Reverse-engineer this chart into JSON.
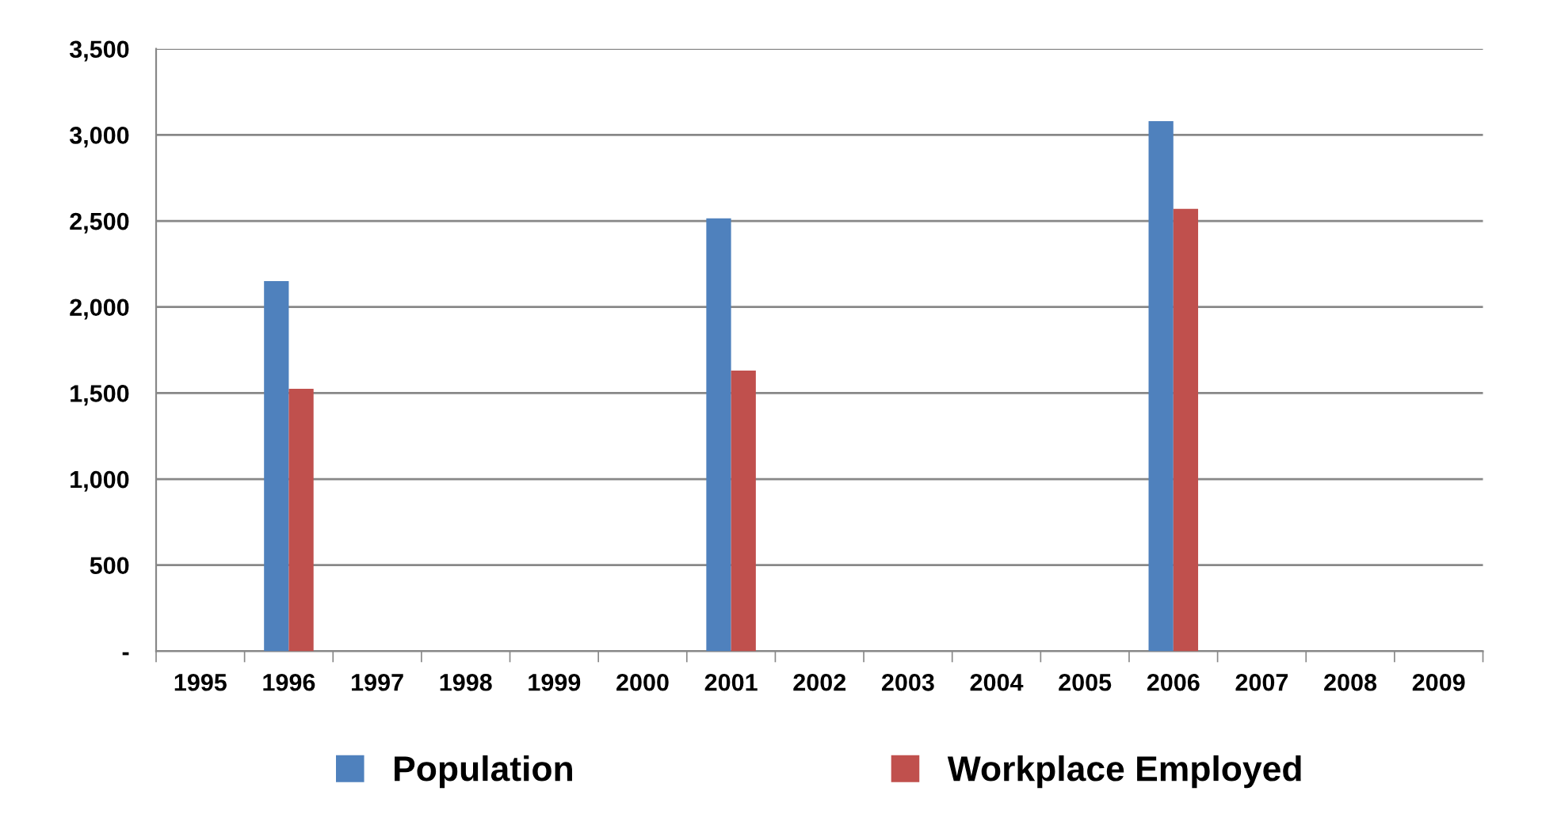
{
  "chart_data": {
    "type": "bar",
    "categories": [
      "1995",
      "1996",
      "1997",
      "1998",
      "1999",
      "2000",
      "2001",
      "2002",
      "2003",
      "2004",
      "2005",
      "2006",
      "2007",
      "2008",
      "2009"
    ],
    "series": [
      {
        "name": "Population",
        "color": "#4f81bd",
        "values": [
          null,
          2150,
          null,
          null,
          null,
          null,
          2515,
          null,
          null,
          null,
          null,
          3080,
          null,
          null,
          null
        ]
      },
      {
        "name": "Workplace Employed",
        "color": "#c0504d",
        "values": [
          null,
          1525,
          null,
          null,
          null,
          null,
          1630,
          null,
          null,
          null,
          null,
          2570,
          null,
          null,
          null
        ]
      }
    ],
    "ylim": [
      0,
      3500
    ],
    "yticks": [
      {
        "value": 0,
        "label": "-"
      },
      {
        "value": 500,
        "label": "500"
      },
      {
        "value": 1000,
        "label": "1,000"
      },
      {
        "value": 1500,
        "label": "1,500"
      },
      {
        "value": 2000,
        "label": "2,000"
      },
      {
        "value": 2500,
        "label": "2,500"
      },
      {
        "value": 3000,
        "label": "3,000"
      },
      {
        "value": 3500,
        "label": "3,500"
      }
    ],
    "grid": "y",
    "legend": "bottom"
  }
}
